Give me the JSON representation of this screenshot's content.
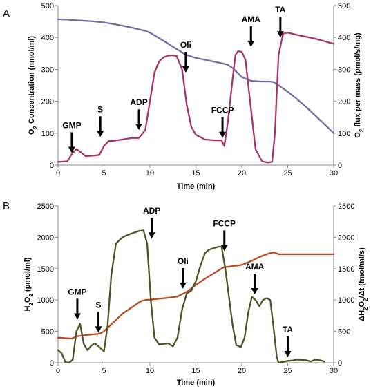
{
  "chart_data": [
    {
      "panel": "A",
      "type": "line",
      "xlabel": "Time (min)",
      "ylabel_left": {
        "base": "O",
        "sub": "2",
        "rest": " Concentration (nmol/ml)"
      },
      "ylabel_right": {
        "base": "O",
        "sub": "2",
        "rest": " flux per mass (pmol/s/mg)"
      },
      "xlim": [
        0,
        30
      ],
      "ylim_left": [
        0,
        500
      ],
      "ylim_right": [
        0,
        500
      ],
      "xticks": [
        0,
        5,
        10,
        15,
        20,
        25,
        30
      ],
      "yticks_left": [
        0,
        100,
        200,
        300,
        400,
        500
      ],
      "yticks_right": [
        0,
        100,
        200,
        300,
        400,
        500
      ],
      "series": [
        {
          "axis": "left",
          "color": "#6f6fa8",
          "x": [
            0,
            1,
            2,
            3,
            4,
            5,
            6,
            7,
            8,
            9,
            9.5,
            10,
            11,
            12,
            13,
            14,
            15,
            16,
            17,
            18,
            18.5,
            19,
            19.5,
            20,
            21,
            22,
            23,
            23.5,
            24,
            25,
            26,
            27,
            28,
            29,
            30
          ],
          "y": [
            457,
            456,
            454,
            452,
            450,
            447,
            442,
            437,
            431,
            424,
            421,
            415,
            398,
            380,
            362,
            345,
            336,
            330,
            324,
            318,
            314,
            304,
            290,
            276,
            264,
            262,
            262,
            260,
            250,
            230,
            207,
            182,
            155,
            128,
            100
          ]
        },
        {
          "axis": "right",
          "color": "#a8336b",
          "x": [
            0,
            1,
            1.5,
            2,
            2.5,
            3,
            4,
            4.5,
            5,
            5.5,
            6,
            7,
            8,
            8.8,
            9.5,
            10,
            10.5,
            11,
            11.5,
            12,
            12.5,
            12.9,
            13.5,
            14,
            14.5,
            15,
            16,
            17,
            17.8,
            18.1,
            18.5,
            19,
            19.3,
            19.6,
            20,
            20.4,
            20.9,
            21.5,
            22.2,
            22.8,
            23.3,
            23.6,
            24,
            24.5,
            25,
            26,
            27,
            28,
            29,
            30
          ],
          "y": [
            10,
            12,
            35,
            50,
            40,
            28,
            30,
            32,
            60,
            75,
            76,
            80,
            85,
            85,
            110,
            200,
            290,
            325,
            338,
            343,
            344,
            342,
            300,
            190,
            120,
            95,
            80,
            78,
            77,
            60,
            140,
            270,
            345,
            357,
            355,
            330,
            200,
            50,
            12,
            8,
            10,
            100,
            345,
            412,
            415,
            408,
            402,
            396,
            388,
            380
          ]
        }
      ],
      "annotations": [
        {
          "label": "GMP",
          "x": 1.5,
          "arrow_tip": 38
        },
        {
          "label": "S",
          "x": 4.6,
          "arrow_tip": 88
        },
        {
          "label": "ADP",
          "x": 8.8,
          "arrow_tip": 110
        },
        {
          "label": "Oli",
          "x": 13.9,
          "arrow_tip": 290
        },
        {
          "label": "FCCP",
          "x": 17.9,
          "arrow_tip": 85
        },
        {
          "label": "AMA",
          "x": 21.0,
          "arrow_tip": 370
        },
        {
          "label": "TA",
          "x": 24.2,
          "arrow_tip": 400
        }
      ]
    },
    {
      "panel": "B",
      "type": "line",
      "xlabel": "Time (min)",
      "ylabel_left": {
        "base": "H",
        "sub": "2",
        "base2": "O",
        "sub2": "2",
        "rest": " (pmol/ml)"
      },
      "ylabel_right": {
        "prefix": "ΔH",
        "sub": "2",
        "base2": "O",
        "sub2": "2",
        "rest": "/Δt (fmol/ml/s)"
      },
      "xlim": [
        0,
        30
      ],
      "ylim_left": [
        0,
        2500
      ],
      "ylim_right": [
        0,
        2500
      ],
      "xticks": [
        0,
        5,
        10,
        15,
        20,
        25,
        30
      ],
      "yticks_left": [
        0,
        500,
        1000,
        1500,
        2000,
        2500
      ],
      "yticks_right": [
        0,
        500,
        1000,
        1500,
        2000,
        2500
      ],
      "series": [
        {
          "axis": "left",
          "color": "#b84a22",
          "x": [
            0,
            1,
            1.5,
            2,
            3,
            4,
            4.5,
            5,
            6,
            7,
            8,
            9,
            9.5,
            10,
            11,
            12,
            13,
            14,
            15,
            16,
            17,
            18,
            19,
            20,
            21,
            22,
            23,
            23.5,
            24,
            25,
            26,
            27,
            28,
            29,
            30
          ],
          "y": [
            400,
            390,
            385,
            420,
            440,
            455,
            460,
            500,
            640,
            780,
            880,
            980,
            1000,
            1005,
            1020,
            1035,
            1055,
            1130,
            1240,
            1340,
            1430,
            1520,
            1540,
            1560,
            1620,
            1690,
            1745,
            1760,
            1730,
            1730,
            1730,
            1730,
            1730,
            1730,
            1730
          ]
        },
        {
          "axis": "right",
          "color": "#4d5222",
          "x": [
            0,
            0.4,
            0.8,
            1.2,
            1.6,
            2.0,
            2.4,
            2.8,
            3.2,
            3.6,
            4.0,
            4.5,
            5.0,
            5.4,
            5.8,
            6.3,
            7.0,
            7.6,
            8.2,
            8.8,
            9.3,
            9.7,
            10.1,
            10.5,
            11.0,
            11.5,
            12.0,
            12.5,
            13.0,
            13.5,
            14.0,
            14.5,
            15.0,
            15.5,
            16.0,
            16.4,
            17.0,
            17.5,
            17.8,
            18.2,
            18.6,
            19.0,
            19.4,
            19.9,
            20.3,
            20.7,
            21.1,
            21.5,
            21.9,
            22.3,
            22.7,
            23.1,
            23.5,
            23.8,
            24.0,
            25.0,
            25.5,
            26.0,
            27.0,
            27.5,
            28.0,
            28.5,
            29.0
          ],
          "y": [
            200,
            150,
            10,
            0,
            50,
            500,
            620,
            300,
            200,
            270,
            310,
            250,
            180,
            600,
            1400,
            1900,
            2000,
            2040,
            2070,
            2100,
            2110,
            1900,
            1000,
            400,
            290,
            300,
            310,
            260,
            400,
            850,
            1100,
            1150,
            1300,
            1550,
            1750,
            1800,
            1830,
            1850,
            1850,
            1500,
            1050,
            600,
            280,
            250,
            400,
            800,
            1050,
            1000,
            900,
            1000,
            1030,
            1000,
            500,
            100,
            0,
            30,
            35,
            50,
            40,
            20,
            50,
            40,
            20
          ]
        }
      ],
      "annotations": [
        {
          "label": "GMP",
          "x": 2.1,
          "arrow_tip": 690
        },
        {
          "label": "S",
          "x": 4.4,
          "arrow_tip": 480
        },
        {
          "label": "ADP",
          "x": 10.2,
          "arrow_tip": 1980
        },
        {
          "label": "Oli",
          "x": 13.6,
          "arrow_tip": 1180
        },
        {
          "label": "FCCP",
          "x": 18.1,
          "arrow_tip": 1780
        },
        {
          "label": "AMA",
          "x": 21.4,
          "arrow_tip": 1090
        },
        {
          "label": "TA",
          "x": 25.0,
          "arrow_tip": 90
        }
      ]
    }
  ]
}
